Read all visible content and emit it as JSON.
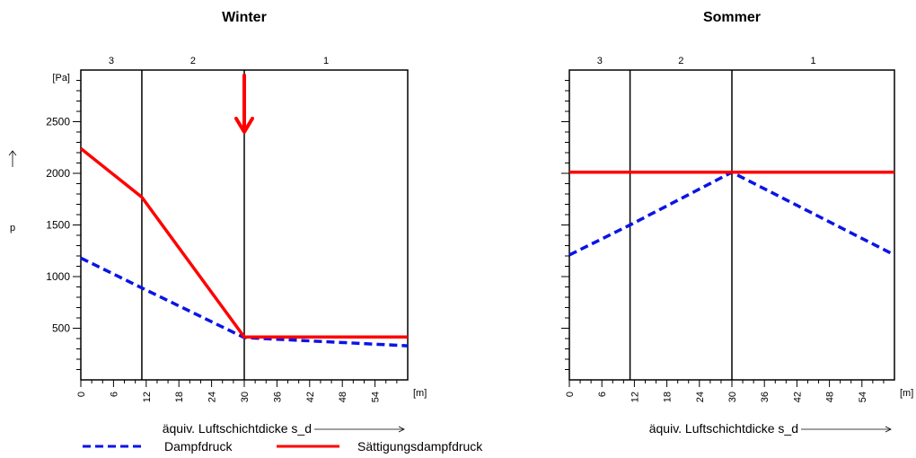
{
  "legend": [
    {
      "label": "Dampfdruck",
      "color": "#0a14e6",
      "style": "dashed"
    },
    {
      "label": "Sättigungsdampfdruck",
      "color": "#ff0000",
      "style": "solid"
    }
  ],
  "chart_data": [
    {
      "type": "line",
      "title": "Winter",
      "xlabel": "äquiv. Luftschichtdicke s_d",
      "ylabel": "p",
      "yunit": "[Pa]",
      "xunit": "[m]",
      "xlim": [
        0,
        60
      ],
      "ylim": [
        0,
        3000
      ],
      "xticks": [
        0,
        6,
        12,
        18,
        24,
        30,
        36,
        42,
        48,
        54
      ],
      "yticks": [
        500,
        1000,
        1500,
        2000,
        2500
      ],
      "ytick_labels": [
        "500",
        "1000",
        "1500",
        "2000",
        "2500"
      ],
      "layer_boundaries": [
        11.2,
        30
      ],
      "layers": [
        {
          "label": "3",
          "from": 0,
          "to": 11.2
        },
        {
          "label": "2",
          "from": 11.2,
          "to": 30
        },
        {
          "label": "1",
          "from": 30,
          "to": 60
        }
      ],
      "series": [
        {
          "name": "Dampfdruck",
          "color": "#0a14e6",
          "dashed": true,
          "x": [
            0,
            11.2,
            30,
            60
          ],
          "y": [
            1180,
            890,
            410,
            330
          ]
        },
        {
          "name": "Sättigungsdampfdruck",
          "color": "#ff0000",
          "dashed": false,
          "x": [
            0,
            11.2,
            30,
            60
          ],
          "y": [
            2240,
            1770,
            415,
            415
          ]
        }
      ],
      "annotation": {
        "type": "arrow",
        "x": 30,
        "y_from": 2960,
        "y_to": 2400,
        "color": "#ff0000"
      }
    },
    {
      "type": "line",
      "title": "Sommer",
      "xlabel": "äquiv. Luftschichtdicke s_d",
      "xunit": "[m]",
      "xlim": [
        0,
        60
      ],
      "ylim": [
        0,
        3000
      ],
      "xticks": [
        0,
        6,
        12,
        18,
        24,
        30,
        36,
        42,
        48,
        54
      ],
      "yticks": [
        500,
        1000,
        1500,
        2000,
        2500
      ],
      "ytick_labels": [],
      "layer_boundaries": [
        11.2,
        30
      ],
      "layers": [
        {
          "label": "3",
          "from": 0,
          "to": 11.2
        },
        {
          "label": "2",
          "from": 11.2,
          "to": 30
        },
        {
          "label": "1",
          "from": 30,
          "to": 60
        }
      ],
      "series": [
        {
          "name": "Dampfdruck",
          "color": "#0a14e6",
          "dashed": true,
          "x": [
            0,
            11.2,
            30,
            60
          ],
          "y": [
            1210,
            1500,
            2010,
            1210
          ]
        },
        {
          "name": "Sättigungsdampfdruck",
          "color": "#ff0000",
          "dashed": false,
          "x": [
            0,
            60
          ],
          "y": [
            2010,
            2010
          ]
        }
      ]
    }
  ]
}
